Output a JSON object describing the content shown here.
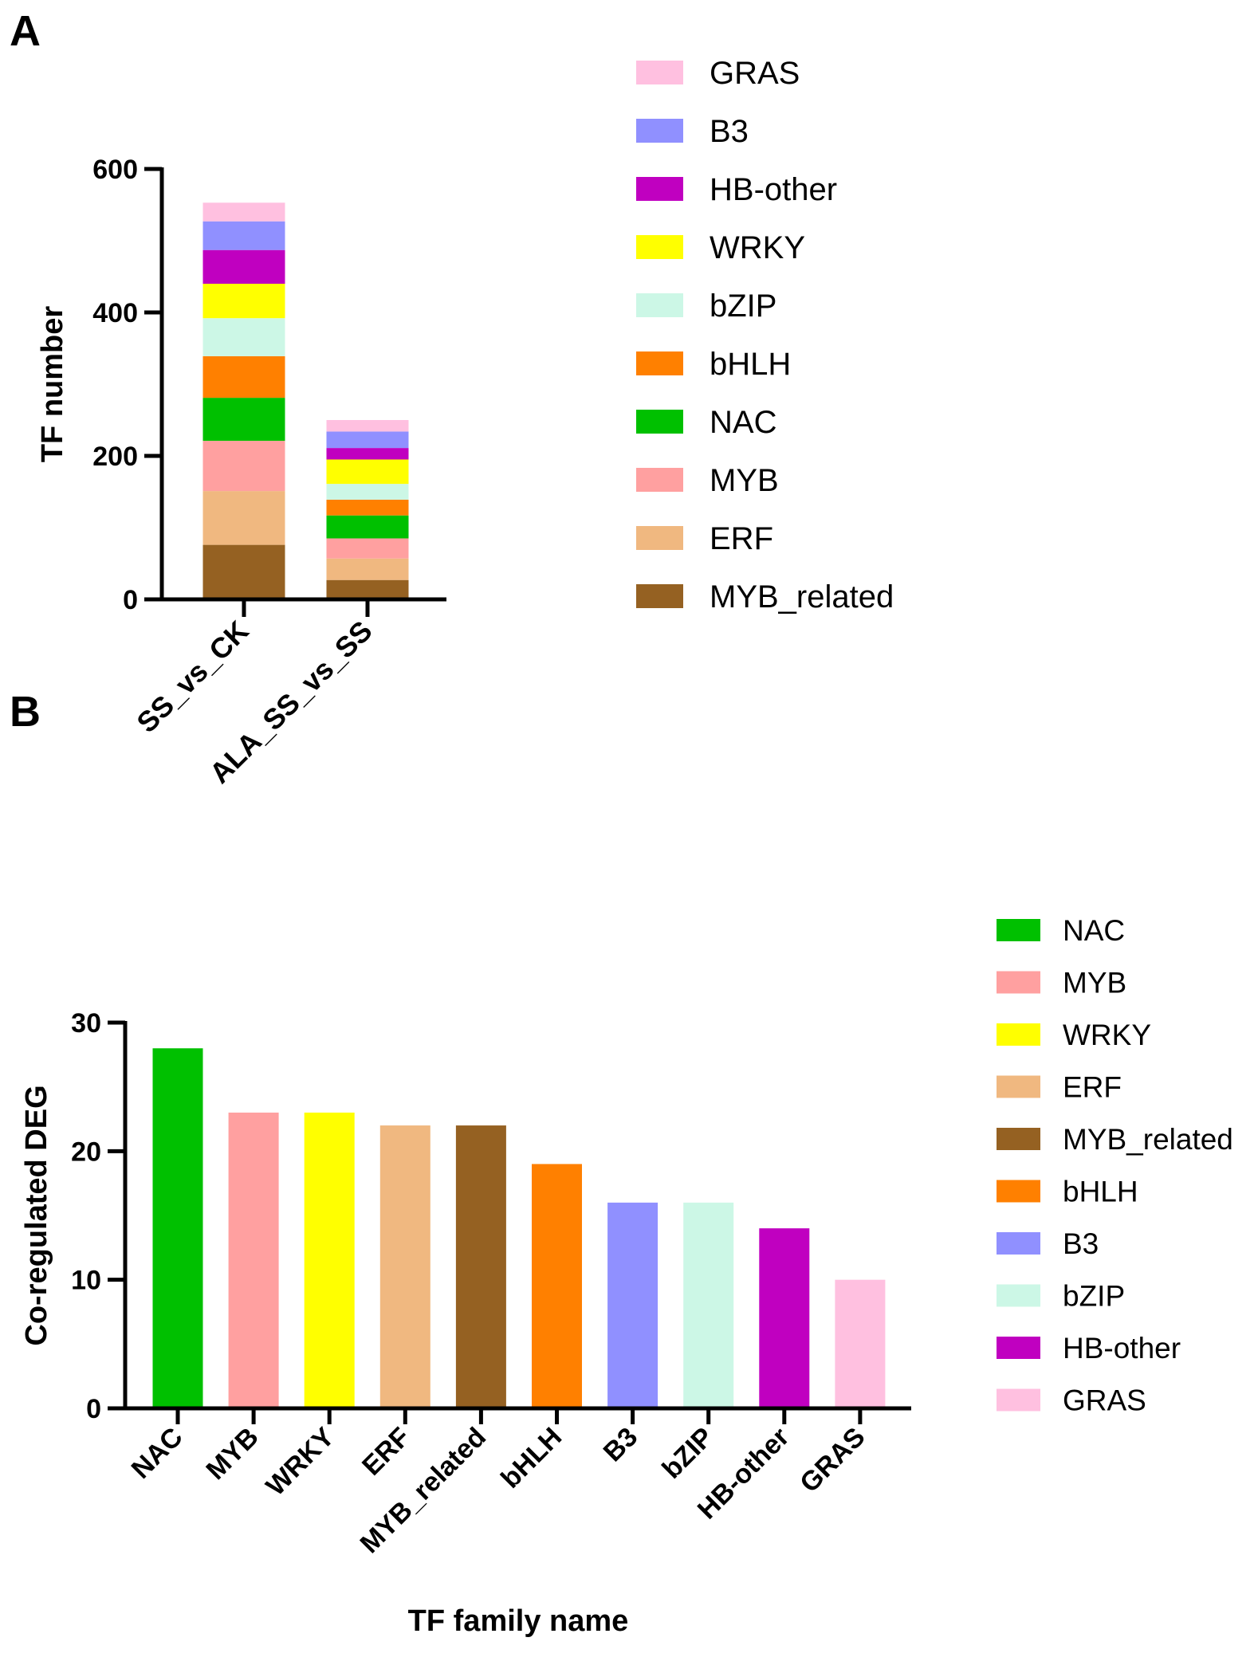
{
  "panels": {
    "a_label": "A",
    "b_label": "B"
  },
  "chart_data": [
    {
      "type": "bar",
      "stacked": true,
      "panel": "A",
      "categories": [
        "SS_vs_CK",
        "ALA_SS_vs_SS"
      ],
      "ylabel": "TF number",
      "xlabel": "",
      "ylim": [
        0,
        600
      ],
      "yticks": [
        0,
        200,
        400,
        600
      ],
      "legend_position": "right",
      "series": [
        {
          "name": "MYB_related",
          "color": "#956122",
          "values": [
            76,
            27
          ]
        },
        {
          "name": "ERF",
          "color": "#F0B880",
          "values": [
            75,
            30
          ]
        },
        {
          "name": "MYB",
          "color": "#FFA0A0",
          "values": [
            70,
            28
          ]
        },
        {
          "name": "NAC",
          "color": "#00C000",
          "values": [
            60,
            32
          ]
        },
        {
          "name": "bHLH",
          "color": "#FF8000",
          "values": [
            58,
            22
          ]
        },
        {
          "name": "bZIP",
          "color": "#CCF7E6",
          "values": [
            53,
            22
          ]
        },
        {
          "name": "WRKY",
          "color": "#FFFF00",
          "values": [
            48,
            34
          ]
        },
        {
          "name": "HB-other",
          "color": "#C000C0",
          "values": [
            47,
            16
          ]
        },
        {
          "name": "B3",
          "color": "#9090FF",
          "values": [
            40,
            23
          ]
        },
        {
          "name": "GRAS",
          "color": "#FFC0E0",
          "values": [
            26,
            16
          ]
        }
      ]
    },
    {
      "type": "bar",
      "panel": "B",
      "categories": [
        "NAC",
        "MYB",
        "WRKY",
        "ERF",
        "MYB_related",
        "bHLH",
        "B3",
        "bZIP",
        "HB-other",
        "GRAS"
      ],
      "values": [
        28,
        23,
        23,
        22,
        22,
        19,
        16,
        16,
        14,
        10
      ],
      "colors": [
        "#00C000",
        "#FFA0A0",
        "#FFFF00",
        "#F0B880",
        "#956122",
        "#FF8000",
        "#9090FF",
        "#CCF7E6",
        "#C000C0",
        "#FFC0E0"
      ],
      "ylabel": "Co-regulated DEG",
      "xlabel": "TF family name",
      "ylim": [
        0,
        30
      ],
      "yticks": [
        0,
        10,
        20,
        30
      ],
      "legend_position": "right"
    }
  ]
}
